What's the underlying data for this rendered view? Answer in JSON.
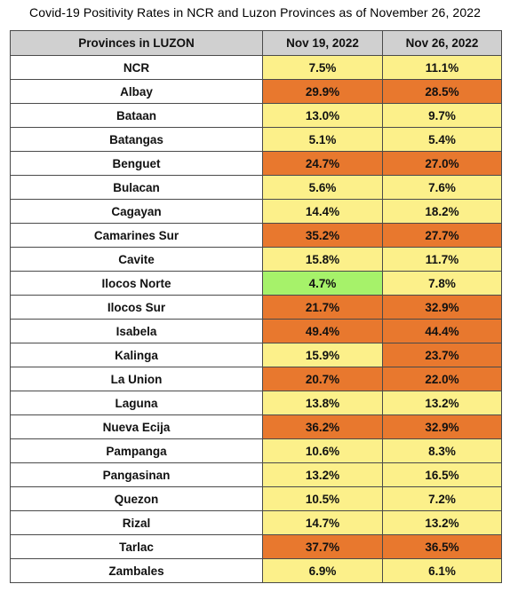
{
  "chart_data": {
    "type": "table",
    "title": "Covid-19 Positivity Rates in NCR and Luzon Provinces as of November 26, 2022",
    "columns": [
      "Provinces in LUZON",
      "Nov 19, 2022",
      "Nov 26, 2022"
    ],
    "rows": [
      {
        "province": "NCR",
        "nov19": "7.5%",
        "nov26": "11.1%"
      },
      {
        "province": "Albay",
        "nov19": "29.9%",
        "nov26": "28.5%"
      },
      {
        "province": "Bataan",
        "nov19": "13.0%",
        "nov26": "9.7%"
      },
      {
        "province": "Batangas",
        "nov19": "5.1%",
        "nov26": "5.4%"
      },
      {
        "province": "Benguet",
        "nov19": "24.7%",
        "nov26": "27.0%"
      },
      {
        "province": "Bulacan",
        "nov19": "5.6%",
        "nov26": "7.6%"
      },
      {
        "province": "Cagayan",
        "nov19": "14.4%",
        "nov26": "18.2%"
      },
      {
        "province": "Camarines Sur",
        "nov19": "35.2%",
        "nov26": "27.7%"
      },
      {
        "province": "Cavite",
        "nov19": "15.8%",
        "nov26": "11.7%"
      },
      {
        "province": "Ilocos Norte",
        "nov19": "4.7%",
        "nov26": "7.8%"
      },
      {
        "province": "Ilocos Sur",
        "nov19": "21.7%",
        "nov26": "32.9%"
      },
      {
        "province": "Isabela",
        "nov19": "49.4%",
        "nov26": "44.4%"
      },
      {
        "province": "Kalinga",
        "nov19": "15.9%",
        "nov26": "23.7%"
      },
      {
        "province": "La Union",
        "nov19": "20.7%",
        "nov26": "22.0%"
      },
      {
        "province": "Laguna",
        "nov19": "13.8%",
        "nov26": "13.2%"
      },
      {
        "province": "Nueva Ecija",
        "nov19": "36.2%",
        "nov26": "32.9%"
      },
      {
        "province": "Pampanga",
        "nov19": "10.6%",
        "nov26": "8.3%"
      },
      {
        "province": "Pangasinan",
        "nov19": "13.2%",
        "nov26": "16.5%"
      },
      {
        "province": "Quezon",
        "nov19": "10.5%",
        "nov26": "7.2%"
      },
      {
        "province": "Rizal",
        "nov19": "14.7%",
        "nov26": "13.2%"
      },
      {
        "province": "Tarlac",
        "nov19": "37.7%",
        "nov26": "36.5%"
      },
      {
        "province": "Zambales",
        "nov19": "6.9%",
        "nov26": "6.1%"
      }
    ],
    "cell_colors": {
      "orange": "#e8782e",
      "yellow": "#fcf08a",
      "green": "#a6f26a",
      "header": "#d0d0d0"
    }
  }
}
